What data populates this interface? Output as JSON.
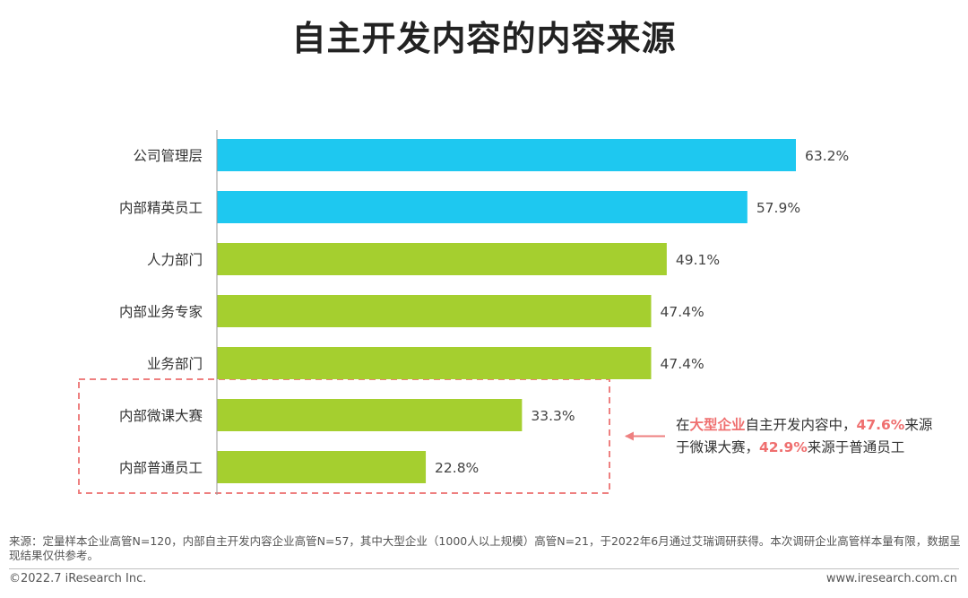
{
  "title": "自主开发内容的内容来源",
  "chart_data": {
    "type": "bar",
    "orientation": "horizontal",
    "categories": [
      "公司管理层",
      "内部精英员工",
      "人力部门",
      "内部业务专家",
      "业务部门",
      "内部微课大赛",
      "内部普通员工"
    ],
    "values": [
      63.2,
      57.9,
      49.1,
      47.4,
      47.4,
      33.3,
      22.8
    ],
    "value_labels": [
      "63.2%",
      "57.9%",
      "49.1%",
      "47.4%",
      "47.4%",
      "33.3%",
      "22.8%"
    ],
    "unit": "%",
    "bar_colors": [
      "#1ec8f0",
      "#1ec8f0",
      "#a5cf2f",
      "#a5cf2f",
      "#a5cf2f",
      "#a5cf2f",
      "#a5cf2f"
    ],
    "xlim": [
      0,
      63.2
    ],
    "grid": false,
    "highlight_box_categories": [
      "内部微课大赛",
      "内部普通员工"
    ],
    "highlight_box_color": "#ee8080"
  },
  "annotation": {
    "prefix": "在",
    "highlight_1": "大型企业",
    "part_2": "自主开发内容中，",
    "highlight_2": "47.6%",
    "part_3": "来源于微课大赛，",
    "highlight_3": "42.9%",
    "part_4": "来源于普通员工",
    "arrow_color": "#ee8080"
  },
  "footnote": "来源：定量样本企业高管N=120，内部自主开发内容企业高管N=57，其中大型企业（1000人以上规模）高管N=21，于2022年6月通过艾瑞调研获得。本次调研企业高管样本量有限，数据呈现结果仅供参考。",
  "footer": {
    "copyright": "©2022.7 iResearch Inc.",
    "website": "www.iresearch.com.cn"
  }
}
